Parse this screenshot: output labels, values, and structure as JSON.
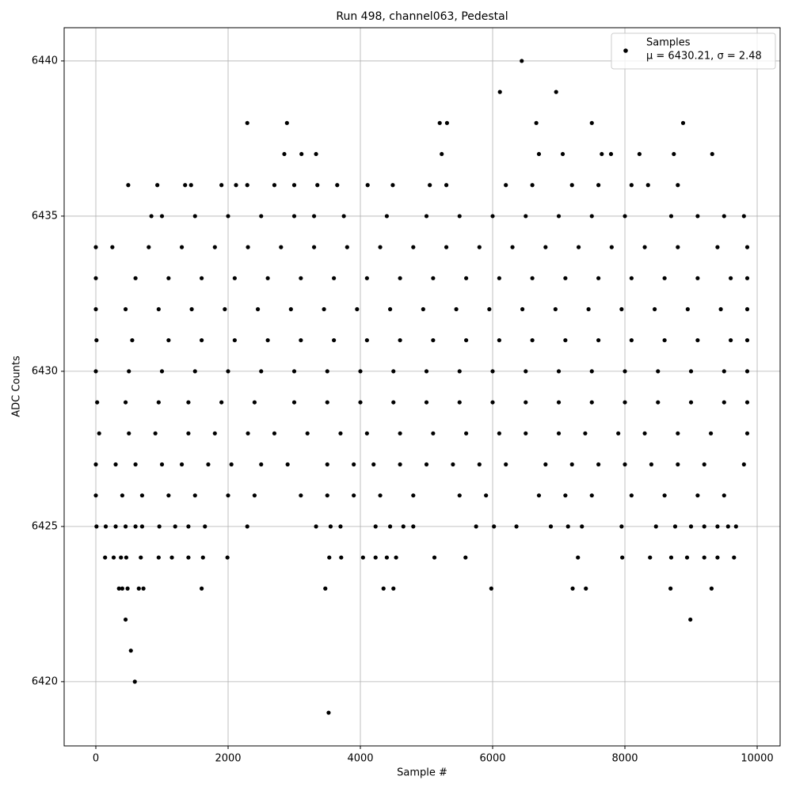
{
  "chart_data": {
    "type": "scatter",
    "title": "Run 498, channel063, Pedestal",
    "x_label": "Sample #",
    "y_label": "ADC Counts",
    "legend_note": "μ = 6430.21, σ = 2.48",
    "legend_position": "upper right",
    "grid": true,
    "xlim": [
      -479,
      10347
    ],
    "ylim": [
      6417.93,
      6441.07
    ],
    "xticks": [
      0,
      2000,
      4000,
      6000,
      8000,
      10000
    ],
    "yticks": [
      6420,
      6425,
      6430,
      6435,
      6440
    ],
    "series": [
      {
        "name": "Samples",
        "color": "#000000",
        "x": [
          590,
          3520,
          530,
          450,
          8990,
          350,
          400,
          480,
          650,
          720,
          1600,
          3470,
          4350,
          4500,
          5980,
          7210,
          7410,
          8690,
          9310,
          140,
          270,
          380,
          460,
          680,
          950,
          1150,
          1400,
          1620,
          1990,
          3530,
          3710,
          4040,
          4230,
          4400,
          4540,
          5120,
          5590,
          7290,
          7960,
          8380,
          8700,
          8940,
          9200,
          9400,
          9650,
          10,
          150,
          300,
          450,
          600,
          700,
          960,
          1200,
          1400,
          1650,
          2290,
          3330,
          3550,
          3700,
          4230,
          4450,
          4650,
          4800,
          5750,
          6020,
          6360,
          6880,
          7140,
          7350,
          7950,
          8470,
          8760,
          9000,
          9200,
          9400,
          9560,
          9680,
          0,
          400,
          700,
          1100,
          1500,
          2000,
          2400,
          3100,
          3500,
          3900,
          4300,
          4800,
          5500,
          5900,
          6700,
          7100,
          7500,
          8100,
          8600,
          9100,
          9500,
          0,
          300,
          600,
          1000,
          1300,
          1700,
          2050,
          2500,
          2900,
          3500,
          3900,
          4200,
          4600,
          5000,
          5400,
          5800,
          6200,
          6800,
          7200,
          7600,
          8000,
          8400,
          8800,
          9200,
          9800,
          50,
          500,
          900,
          1400,
          1800,
          2300,
          2700,
          3200,
          3700,
          4100,
          4600,
          5100,
          5600,
          6100,
          6500,
          7000,
          7400,
          7900,
          8300,
          8800,
          9300,
          9850,
          20,
          450,
          950,
          1400,
          1900,
          2400,
          3000,
          3500,
          4000,
          4500,
          5000,
          5500,
          6000,
          6500,
          7000,
          7500,
          8000,
          8500,
          9000,
          9500,
          9850,
          0,
          500,
          1000,
          1500,
          2000,
          2500,
          3000,
          3500,
          4000,
          4500,
          5000,
          5500,
          6000,
          6500,
          7000,
          7500,
          8000,
          8500,
          9000,
          9500,
          9850,
          10,
          550,
          1100,
          1600,
          2100,
          2600,
          3100,
          3600,
          4100,
          4600,
          5100,
          5600,
          6100,
          6600,
          7100,
          7600,
          8100,
          8600,
          9100,
          9600,
          9850,
          0,
          450,
          950,
          1450,
          1950,
          2450,
          2950,
          3450,
          3950,
          4450,
          4950,
          5450,
          5950,
          6450,
          6950,
          7450,
          7950,
          8450,
          8950,
          9450,
          9850,
          0,
          600,
          1100,
          1600,
          2100,
          2600,
          3100,
          3600,
          4100,
          4600,
          5100,
          5600,
          6100,
          6600,
          7100,
          7600,
          8100,
          8600,
          9100,
          9600,
          9850,
          0,
          250,
          800,
          1300,
          1800,
          2300,
          2800,
          3300,
          3800,
          4300,
          4800,
          5300,
          5800,
          6300,
          6800,
          7300,
          7800,
          8300,
          8800,
          9400,
          9850,
          840,
          1000,
          1500,
          2000,
          2500,
          3000,
          3300,
          3750,
          4400,
          5000,
          5500,
          6000,
          6500,
          7000,
          7500,
          8000,
          8700,
          9100,
          9500,
          9800,
          490,
          930,
          1350,
          1440,
          1900,
          2120,
          2290,
          2700,
          3000,
          3350,
          3650,
          4110,
          4490,
          5050,
          5300,
          6200,
          6600,
          7200,
          7600,
          8100,
          8350,
          8800,
          2850,
          3110,
          3330,
          5230,
          6700,
          7060,
          7650,
          7790,
          8220,
          8740,
          9320,
          2290,
          2890,
          5200,
          5310,
          6660,
          7500,
          8880,
          6110,
          6960,
          6440
        ],
        "values": [
          6420,
          6419,
          6421,
          6422,
          6422,
          6423,
          6423,
          6423,
          6423,
          6423,
          6423,
          6423,
          6423,
          6423,
          6423,
          6423,
          6423,
          6423,
          6423,
          6424,
          6424,
          6424,
          6424,
          6424,
          6424,
          6424,
          6424,
          6424,
          6424,
          6424,
          6424,
          6424,
          6424,
          6424,
          6424,
          6424,
          6424,
          6424,
          6424,
          6424,
          6424,
          6424,
          6424,
          6424,
          6424,
          6425,
          6425,
          6425,
          6425,
          6425,
          6425,
          6425,
          6425,
          6425,
          6425,
          6425,
          6425,
          6425,
          6425,
          6425,
          6425,
          6425,
          6425,
          6425,
          6425,
          6425,
          6425,
          6425,
          6425,
          6425,
          6425,
          6425,
          6425,
          6425,
          6425,
          6425,
          6425,
          6426,
          6426,
          6426,
          6426,
          6426,
          6426,
          6426,
          6426,
          6426,
          6426,
          6426,
          6426,
          6426,
          6426,
          6426,
          6426,
          6426,
          6426,
          6426,
          6426,
          6426,
          6427,
          6427,
          6427,
          6427,
          6427,
          6427,
          6427,
          6427,
          6427,
          6427,
          6427,
          6427,
          6427,
          6427,
          6427,
          6427,
          6427,
          6427,
          6427,
          6427,
          6427,
          6427,
          6427,
          6427,
          6427,
          6428,
          6428,
          6428,
          6428,
          6428,
          6428,
          6428,
          6428,
          6428,
          6428,
          6428,
          6428,
          6428,
          6428,
          6428,
          6428,
          6428,
          6428,
          6428,
          6428,
          6428,
          6428,
          6429,
          6429,
          6429,
          6429,
          6429,
          6429,
          6429,
          6429,
          6429,
          6429,
          6429,
          6429,
          6429,
          6429,
          6429,
          6429,
          6429,
          6429,
          6429,
          6429,
          6429,
          6430,
          6430,
          6430,
          6430,
          6430,
          6430,
          6430,
          6430,
          6430,
          6430,
          6430,
          6430,
          6430,
          6430,
          6430,
          6430,
          6430,
          6430,
          6430,
          6430,
          6430,
          6431,
          6431,
          6431,
          6431,
          6431,
          6431,
          6431,
          6431,
          6431,
          6431,
          6431,
          6431,
          6431,
          6431,
          6431,
          6431,
          6431,
          6431,
          6431,
          6431,
          6431,
          6432,
          6432,
          6432,
          6432,
          6432,
          6432,
          6432,
          6432,
          6432,
          6432,
          6432,
          6432,
          6432,
          6432,
          6432,
          6432,
          6432,
          6432,
          6432,
          6432,
          6432,
          6433,
          6433,
          6433,
          6433,
          6433,
          6433,
          6433,
          6433,
          6433,
          6433,
          6433,
          6433,
          6433,
          6433,
          6433,
          6433,
          6433,
          6433,
          6433,
          6433,
          6433,
          6434,
          6434,
          6434,
          6434,
          6434,
          6434,
          6434,
          6434,
          6434,
          6434,
          6434,
          6434,
          6434,
          6434,
          6434,
          6434,
          6434,
          6434,
          6434,
          6434,
          6434,
          6435,
          6435,
          6435,
          6435,
          6435,
          6435,
          6435,
          6435,
          6435,
          6435,
          6435,
          6435,
          6435,
          6435,
          6435,
          6435,
          6435,
          6435,
          6435,
          6435,
          6436,
          6436,
          6436,
          6436,
          6436,
          6436,
          6436,
          6436,
          6436,
          6436,
          6436,
          6436,
          6436,
          6436,
          6436,
          6436,
          6436,
          6436,
          6436,
          6436,
          6436,
          6436,
          6437,
          6437,
          6437,
          6437,
          6437,
          6437,
          6437,
          6437,
          6437,
          6437,
          6437,
          6438,
          6438,
          6438,
          6438,
          6438,
          6438,
          6438,
          6439,
          6439,
          6440
        ]
      }
    ]
  }
}
